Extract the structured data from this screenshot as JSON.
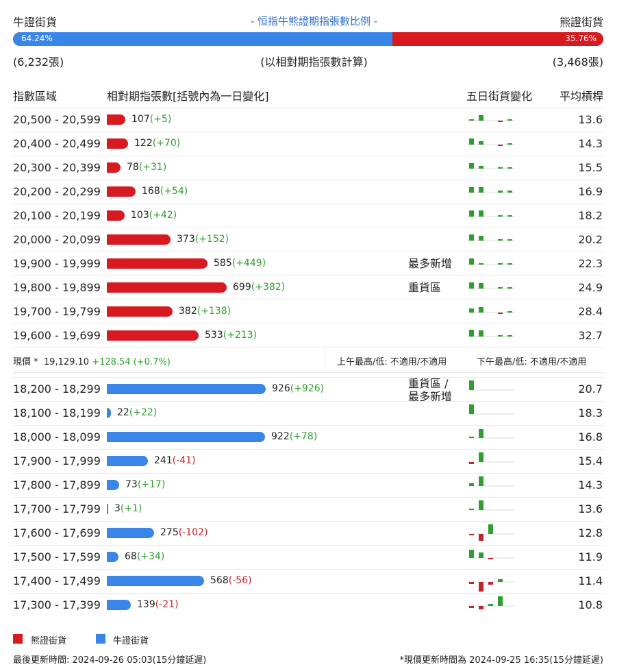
{
  "header": {
    "bull_label": "牛證街貨",
    "bear_label": "熊證街貨",
    "title": "- 恒指牛熊證期指張數比例 -",
    "bull_pct": "64.24%",
    "bear_pct": "35.76%",
    "bull_fraction": 0.6424,
    "bull_count": "(6,232張)",
    "bear_count": "(3,468張)",
    "basis_note": "(以相對期指張數計算)"
  },
  "columns": {
    "range": "指數區域",
    "contracts": "相對期指張數[括號內為一日變化]",
    "five_day": "五日街貨變化",
    "leverage": "平均槓桿"
  },
  "bar_max": 926,
  "bear_rows": [
    {
      "range": "20,500 - 20,599",
      "count": 107,
      "count_text": "107",
      "change": "(+5)",
      "sign": "pos",
      "note": "",
      "leverage": "13.6",
      "spark": [
        1,
        8,
        0,
        -1,
        1
      ]
    },
    {
      "range": "20,400 - 20,499",
      "count": 122,
      "count_text": "122",
      "change": "(+70)",
      "sign": "pos",
      "note": "",
      "leverage": "14.3",
      "spark": [
        9,
        5,
        0,
        -1,
        2
      ]
    },
    {
      "range": "20,300 - 20,399",
      "count": 78,
      "count_text": "78",
      "change": "(+31)",
      "sign": "pos",
      "note": "",
      "leverage": "15.5",
      "spark": [
        8,
        4,
        0,
        1,
        1
      ]
    },
    {
      "range": "20,200 - 20,299",
      "count": 168,
      "count_text": "168",
      "change": "(+54)",
      "sign": "pos",
      "note": "",
      "leverage": "16.9",
      "spark": [
        8,
        8,
        0,
        3,
        3
      ]
    },
    {
      "range": "20,100 - 20,199",
      "count": 103,
      "count_text": "103",
      "change": "(+42)",
      "sign": "pos",
      "note": "",
      "leverage": "18.2",
      "spark": [
        9,
        9,
        0,
        1,
        1
      ]
    },
    {
      "range": "20,000 - 20,099",
      "count": 373,
      "count_text": "373",
      "change": "(+152)",
      "sign": "pos",
      "note": "",
      "leverage": "20.2",
      "spark": [
        9,
        7,
        0,
        1,
        2
      ]
    },
    {
      "range": "19,900 - 19,999",
      "count": 585,
      "count_text": "585",
      "change": "(+449)",
      "sign": "pos",
      "note": "最多新增",
      "leverage": "22.3",
      "spark": [
        9,
        2,
        0,
        1,
        1
      ]
    },
    {
      "range": "19,800 - 19,899",
      "count": 699,
      "count_text": "699",
      "change": "(+382)",
      "sign": "pos",
      "note": "重貨區",
      "leverage": "24.9",
      "spark": [
        9,
        8,
        0,
        1,
        1
      ]
    },
    {
      "range": "19,700 - 19,799",
      "count": 382,
      "count_text": "382",
      "change": "(+138)",
      "sign": "pos",
      "note": "",
      "leverage": "28.4",
      "spark": [
        6,
        8,
        0,
        -1,
        2
      ]
    },
    {
      "range": "19,600 - 19,699",
      "count": 533,
      "count_text": "533",
      "change": "(+213)",
      "sign": "pos",
      "note": "",
      "leverage": "32.7",
      "spark": [
        10,
        9,
        0,
        1,
        1
      ]
    }
  ],
  "spot": {
    "label": "現價 *",
    "price": "19,129.10",
    "change": "+128.54 (+0.7%)",
    "am_hilo": "上午最高/低: 不適用/不適用",
    "pm_hilo": "下午最高/低: 不適用/不適用"
  },
  "bull_rows": [
    {
      "range": "18,200 - 18,299",
      "count": 926,
      "count_text": "926",
      "change": "(+926)",
      "sign": "pos",
      "note": "重貨區 / 最多新增",
      "leverage": "20.7",
      "spark": [
        14,
        0,
        0,
        0,
        0
      ]
    },
    {
      "range": "18,100 - 18,199",
      "count": 22,
      "count_text": "22",
      "change": "(+22)",
      "sign": "pos",
      "note": "",
      "leverage": "18.3",
      "spark": [
        14,
        0,
        0,
        0,
        0
      ]
    },
    {
      "range": "18,000 - 18,099",
      "count": 922,
      "count_text": "922",
      "change": "(+78)",
      "sign": "pos",
      "note": "",
      "leverage": "16.8",
      "spark": [
        2,
        13,
        0,
        0,
        0
      ]
    },
    {
      "range": "17,900 - 17,999",
      "count": 241,
      "count_text": "241",
      "change": "(-41)",
      "sign": "neg",
      "note": "",
      "leverage": "15.4",
      "spark": [
        -3,
        14,
        0,
        0,
        0
      ]
    },
    {
      "range": "17,800 - 17,899",
      "count": 73,
      "count_text": "73",
      "change": "(+17)",
      "sign": "pos",
      "note": "",
      "leverage": "14.3",
      "spark": [
        4,
        14,
        0,
        0,
        0
      ]
    },
    {
      "range": "17,700 - 17,799",
      "count": 3,
      "count_text": "3",
      "change": "(+1)",
      "sign": "pos",
      "note": "",
      "leverage": "13.6",
      "spark": [
        2,
        14,
        0,
        0,
        0
      ]
    },
    {
      "range": "17,600 - 17,699",
      "count": 275,
      "count_text": "275",
      "change": "(-102)",
      "sign": "neg",
      "note": "",
      "leverage": "12.8",
      "spark": [
        -2,
        -10,
        14,
        0,
        0
      ]
    },
    {
      "range": "17,500 - 17,599",
      "count": 68,
      "count_text": "68",
      "change": "(+34)",
      "sign": "pos",
      "note": "",
      "leverage": "11.9",
      "spark": [
        12,
        8,
        -2,
        0,
        0
      ]
    },
    {
      "range": "17,400 - 17,499",
      "count": 568,
      "count_text": "568",
      "change": "(-56)",
      "sign": "neg",
      "note": "",
      "leverage": "11.4",
      "spark": [
        -3,
        -14,
        -4,
        4,
        0
      ]
    },
    {
      "range": "17,300 - 17,399",
      "count": 139,
      "count_text": "139",
      "change": "(-21)",
      "sign": "neg",
      "note": "",
      "leverage": "10.8",
      "spark": [
        -3,
        -5,
        3,
        14,
        0
      ]
    }
  ],
  "legend": {
    "bear": "熊證街貨",
    "bull": "牛證街貨",
    "bear_color": "#d71920",
    "bull_color": "#3a86e8",
    "spark_up_color": "#2e9e2e",
    "spark_down_color": "#c2242b"
  },
  "footer": {
    "last_update": "最後更新時間: 2024-09-26 05:03(15分鐘延遲)",
    "price_update": "*現價更新時間為 2024-09-25 16:35(15分鐘延遲)"
  }
}
